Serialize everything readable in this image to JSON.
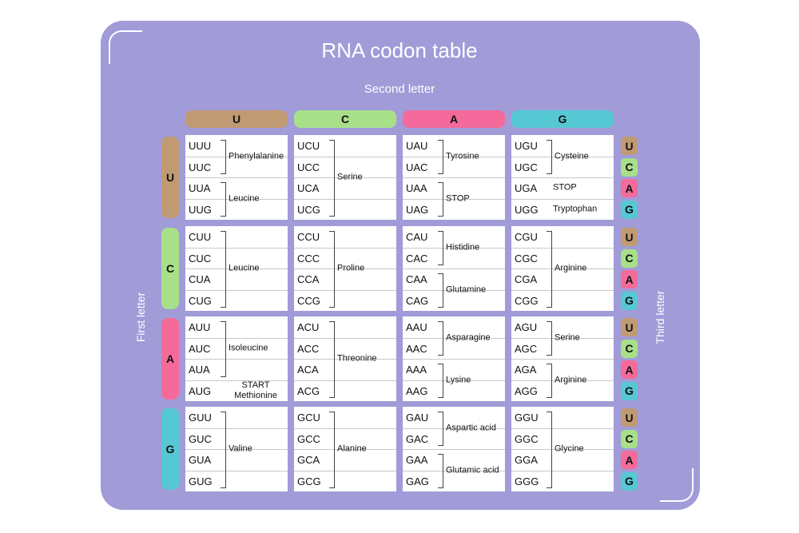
{
  "title": "RNA codon table",
  "labels": {
    "second_letter": "Second letter",
    "first_letter": "First letter",
    "third_letter": "Third letter"
  },
  "colors": {
    "U": "#c09a72",
    "C": "#a8e08a",
    "A": "#f46a9a",
    "G": "#55c8d4",
    "panel": "#a19bd8"
  },
  "bases": [
    "U",
    "C",
    "A",
    "G"
  ],
  "blocks": [
    [
      {
        "codons": [
          "UUU",
          "UUC",
          "UUA",
          "UUG"
        ],
        "groups": [
          {
            "start": 0,
            "end": 1,
            "label": "Phenylalanine"
          },
          {
            "start": 2,
            "end": 3,
            "label": "Leucine"
          }
        ]
      },
      {
        "codons": [
          "UCU",
          "UCC",
          "UCA",
          "UCG"
        ],
        "groups": [
          {
            "start": 0,
            "end": 3,
            "label": "Serine"
          }
        ]
      },
      {
        "codons": [
          "UAU",
          "UAC",
          "UAA",
          "UAG"
        ],
        "groups": [
          {
            "start": 0,
            "end": 1,
            "label": "Tyrosine"
          },
          {
            "start": 2,
            "end": 3,
            "label": "STOP"
          }
        ]
      },
      {
        "codons": [
          "UGU",
          "UGC",
          "UGA",
          "UGG"
        ],
        "groups": [
          {
            "start": 0,
            "end": 1,
            "label": "Cysteine"
          },
          {
            "start": 2,
            "end": 2,
            "label": "STOP"
          },
          {
            "start": 3,
            "end": 3,
            "label": "Tryptophan"
          }
        ]
      }
    ],
    [
      {
        "codons": [
          "CUU",
          "CUC",
          "CUA",
          "CUG"
        ],
        "groups": [
          {
            "start": 0,
            "end": 3,
            "label": "Leucine"
          }
        ]
      },
      {
        "codons": [
          "CCU",
          "CCC",
          "CCA",
          "CCG"
        ],
        "groups": [
          {
            "start": 0,
            "end": 3,
            "label": "Proline"
          }
        ]
      },
      {
        "codons": [
          "CAU",
          "CAC",
          "CAA",
          "CAG"
        ],
        "groups": [
          {
            "start": 0,
            "end": 1,
            "label": "Histidine"
          },
          {
            "start": 2,
            "end": 3,
            "label": "Glutamine"
          }
        ]
      },
      {
        "codons": [
          "CGU",
          "CGC",
          "CGA",
          "CGG"
        ],
        "groups": [
          {
            "start": 0,
            "end": 3,
            "label": "Arginine"
          }
        ]
      }
    ],
    [
      {
        "codons": [
          "AUU",
          "AUC",
          "AUA",
          "AUG"
        ],
        "groups": [
          {
            "start": 0,
            "end": 2,
            "label": "Isoleucine"
          },
          {
            "start": 3,
            "end": 3,
            "label": "START Methionine"
          }
        ]
      },
      {
        "codons": [
          "ACU",
          "ACC",
          "ACA",
          "ACG"
        ],
        "groups": [
          {
            "start": 0,
            "end": 3,
            "label": "Threonine"
          }
        ]
      },
      {
        "codons": [
          "AAU",
          "AAC",
          "AAA",
          "AAG"
        ],
        "groups": [
          {
            "start": 0,
            "end": 1,
            "label": "Asparagine"
          },
          {
            "start": 2,
            "end": 3,
            "label": "Lysine"
          }
        ]
      },
      {
        "codons": [
          "AGU",
          "AGC",
          "AGA",
          "AGG"
        ],
        "groups": [
          {
            "start": 0,
            "end": 1,
            "label": "Serine"
          },
          {
            "start": 2,
            "end": 3,
            "label": "Arginine"
          }
        ]
      }
    ],
    [
      {
        "codons": [
          "GUU",
          "GUC",
          "GUA",
          "GUG"
        ],
        "groups": [
          {
            "start": 0,
            "end": 3,
            "label": "Valine"
          }
        ]
      },
      {
        "codons": [
          "GCU",
          "GCC",
          "GCA",
          "GCG"
        ],
        "groups": [
          {
            "start": 0,
            "end": 3,
            "label": "Alanine"
          }
        ]
      },
      {
        "codons": [
          "GAU",
          "GAC",
          "GAA",
          "GAG"
        ],
        "groups": [
          {
            "start": 0,
            "end": 1,
            "label": "Aspartic acid"
          },
          {
            "start": 2,
            "end": 3,
            "label": "Glutamic acid"
          }
        ]
      },
      {
        "codons": [
          "GGU",
          "GGC",
          "GGA",
          "GGG"
        ],
        "groups": [
          {
            "start": 0,
            "end": 3,
            "label": "Glycine"
          }
        ]
      }
    ]
  ]
}
